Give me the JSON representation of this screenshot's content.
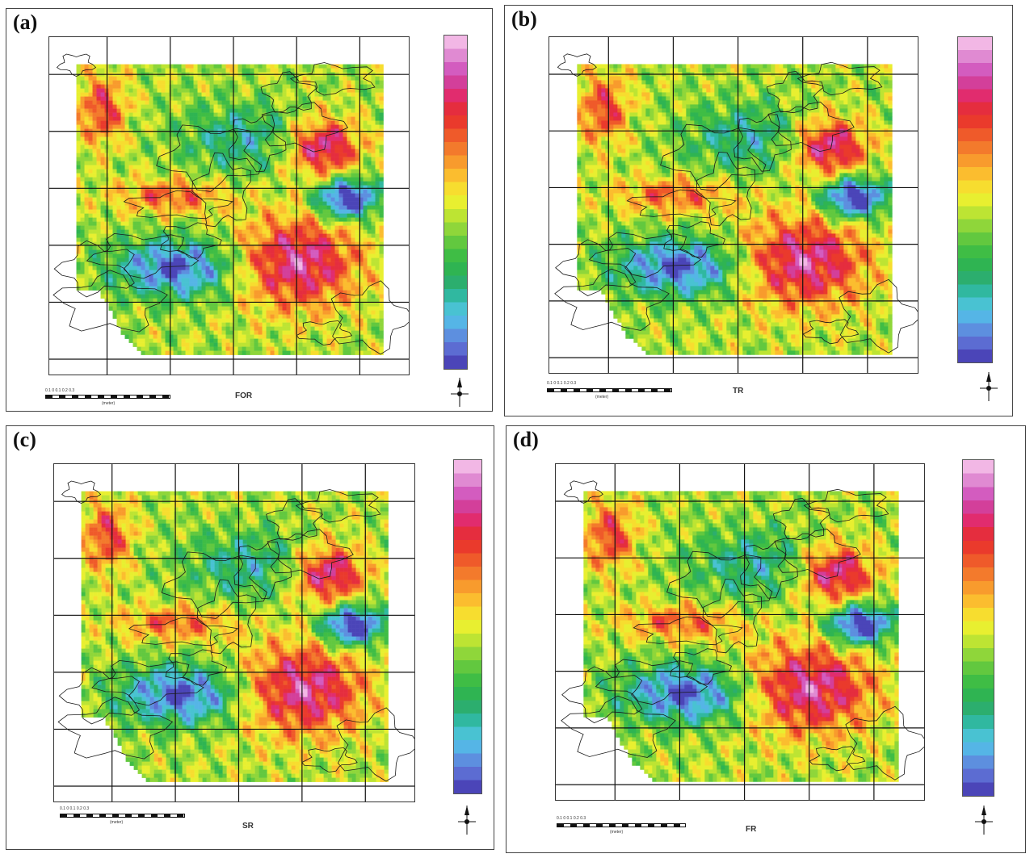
{
  "panels": [
    {
      "letter": "(a)",
      "caption": "FOR",
      "palette": [
        "#f2b7e5",
        "#e08ad2",
        "#d35cbf",
        "#d33f9a",
        "#e12c6e",
        "#e52d3e",
        "#ea3a2c",
        "#ef5a2a",
        "#f37a2c",
        "#f89b2d",
        "#fbbd2f",
        "#f7dd2f",
        "#e8ef30",
        "#bde433",
        "#8fd63a",
        "#62c83f",
        "#3fbd45",
        "#2fb452",
        "#2cae6e",
        "#30b8a0",
        "#49c2d2",
        "#55b5e6",
        "#5d8fdf",
        "#5c6cd2",
        "#4b45b8"
      ]
    },
    {
      "letter": "(b)",
      "caption": "TR",
      "palette": [
        "#f2b7e5",
        "#e08ad2",
        "#d35cbf",
        "#d33f9a",
        "#e12c6e",
        "#e52d3e",
        "#ea3a2c",
        "#ef5a2a",
        "#f37a2c",
        "#f89b2d",
        "#fbbd2f",
        "#f7dd2f",
        "#e8ef30",
        "#bde433",
        "#8fd63a",
        "#62c83f",
        "#3fbd45",
        "#2fb452",
        "#2cae6e",
        "#30b8a0",
        "#49c2d2",
        "#55b5e6",
        "#5d8fdf",
        "#5c6cd2",
        "#4b45b8"
      ]
    },
    {
      "letter": "(c)",
      "caption": "SR",
      "palette": [
        "#f2b7e5",
        "#e08ad2",
        "#d35cbf",
        "#d33f9a",
        "#e12c6e",
        "#e52d3e",
        "#ea3a2c",
        "#ef5a2a",
        "#f37a2c",
        "#f89b2d",
        "#fbbd2f",
        "#f7dd2f",
        "#e8ef30",
        "#bde433",
        "#8fd63a",
        "#62c83f",
        "#3fbd45",
        "#2fb452",
        "#2cae6e",
        "#30b8a0",
        "#49c2d2",
        "#55b5e6",
        "#5d8fdf",
        "#5c6cd2",
        "#4b45b8"
      ]
    },
    {
      "letter": "(d)",
      "caption": "FR",
      "palette": [
        "#f2b7e5",
        "#e08ad2",
        "#d35cbf",
        "#d33f9a",
        "#e12c6e",
        "#e52d3e",
        "#ea3a2c",
        "#ef5a2a",
        "#f37a2c",
        "#f89b2d",
        "#fbbd2f",
        "#f7dd2f",
        "#e8ef30",
        "#bde433",
        "#8fd63a",
        "#62c83f",
        "#3fbd45",
        "#2fb452",
        "#2cae6e",
        "#30b8a0",
        "#49c2d2",
        "#55b5e6",
        "#5d8fdf",
        "#5c6cd2",
        "#4b45b8"
      ]
    }
  ],
  "scale": {
    "ticks": "0.1     0      0.1    0.2    0.3",
    "unit": "(meter)"
  },
  "north_icon": "north-arrow-icon",
  "grid_tick": "·"
}
